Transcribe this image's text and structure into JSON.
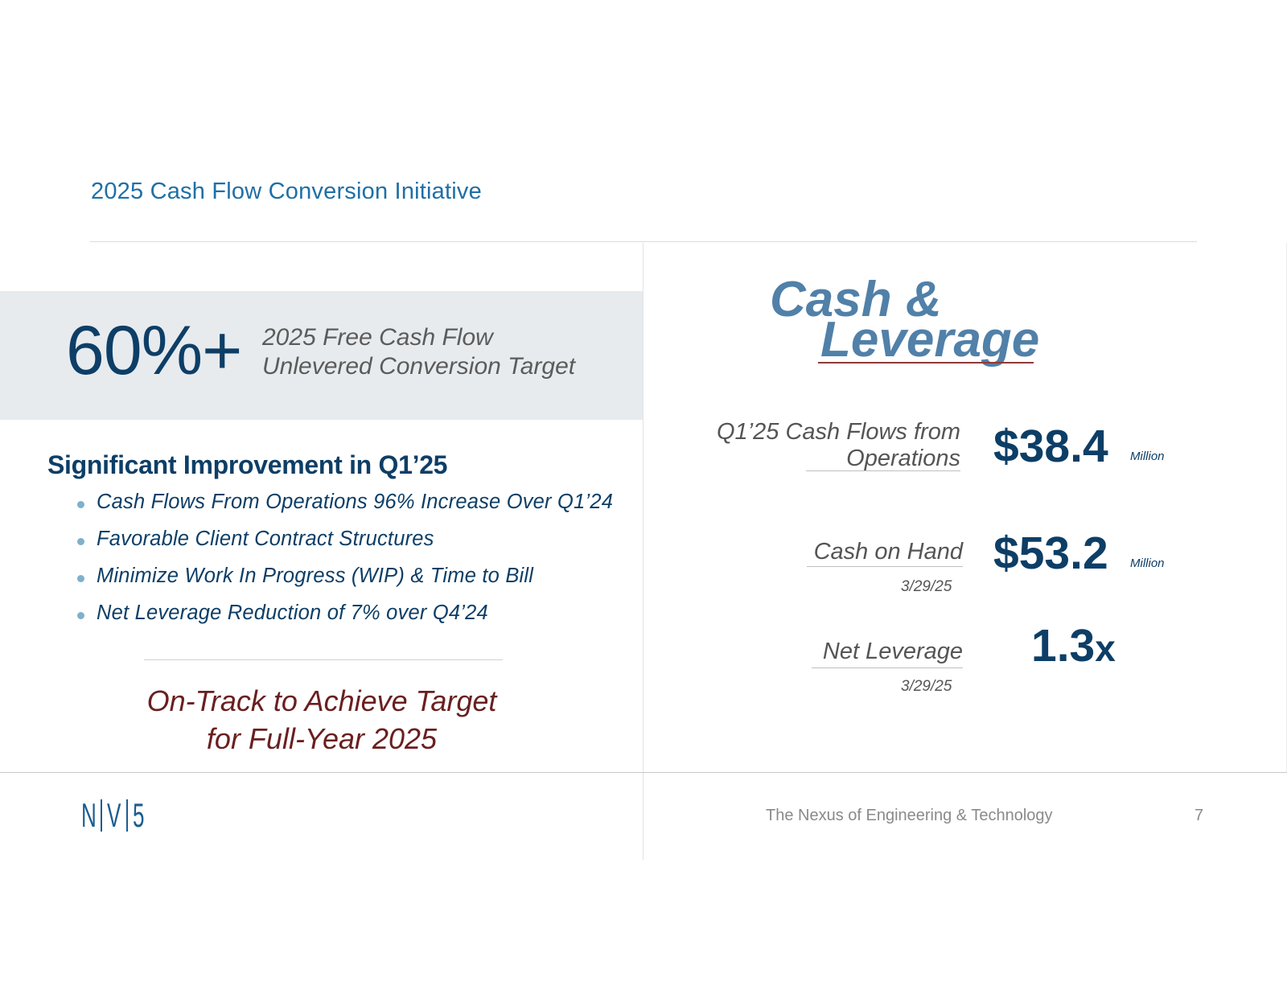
{
  "header": {
    "title": "2025 Cash Flow Conversion Initiative"
  },
  "target": {
    "value": "60%+",
    "description_line1": "2025 Free Cash Flow",
    "description_line2": "Unlevered Conversion Target"
  },
  "improvement": {
    "heading": "Significant Improvement in Q1’25",
    "bullets": [
      "Cash Flows From Operations 96% Increase Over Q1’24",
      "Favorable Client Contract Structures",
      "Minimize Work In Progress (WIP) & Time to Bill",
      "Net Leverage Reduction of 7% over Q4’24"
    ]
  },
  "ontrack": {
    "line1": "On-Track to Achieve Target",
    "line2": "for Full-Year 2025"
  },
  "cash_leverage": {
    "title_line1": "Cash &",
    "title_line2": "Leverage",
    "metrics": [
      {
        "label_line1": "Q1’25 Cash Flows from",
        "label_line2": "Operations",
        "value": "$38.4",
        "unit": "Million"
      },
      {
        "label": "Cash on Hand",
        "date": "3/29/25",
        "value": "$53.2",
        "unit": "Million"
      },
      {
        "label": "Net Leverage",
        "date": "3/29/25",
        "value": "1.3",
        "suffix": "x"
      }
    ]
  },
  "footer": {
    "logo": {
      "letters": [
        "N",
        "V",
        "5"
      ]
    },
    "tagline": "The Nexus of Engineering & Technology",
    "page_number": "7"
  },
  "colors": {
    "navy": "#0d3e66",
    "blue_title": "#1f6fa6",
    "steel_blue": "#5180a8",
    "maroon": "#6a1f1f",
    "band": "#e7ebee"
  }
}
